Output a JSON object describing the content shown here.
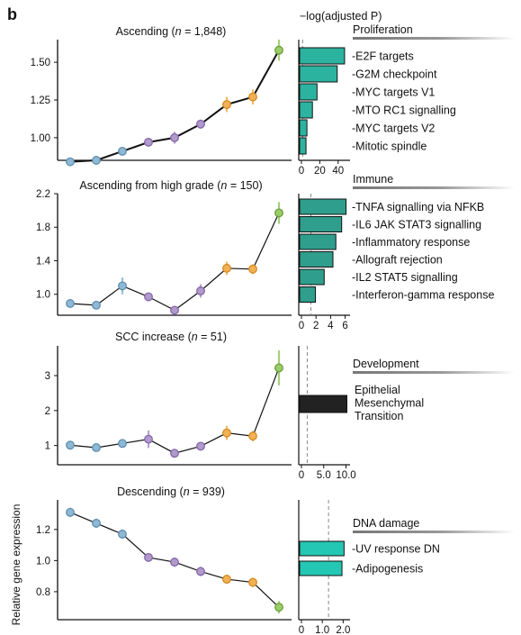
{
  "panel_letter": "b",
  "top_axis_label": "−log(adjusted P)",
  "y_axis_label": "Relative gene expression",
  "colors": {
    "blue": "#8fb8d4",
    "purple": "#b19acb",
    "orange": "#f0b255",
    "green": "#9bcc6a",
    "bar_proliferation": "#2bb3a0",
    "bar_immune": "#2f9e8c",
    "bar_development": "#222222",
    "bar_dna": "#24c7b3"
  },
  "chart_data": [
    {
      "type": "line",
      "title": "Ascending (n = 1,848)",
      "title_parts": [
        "Ascending (",
        "n",
        " = 1,848)"
      ],
      "yticks": [
        "1.00",
        "1.25",
        "1.50"
      ],
      "ylim": [
        0.85,
        1.65
      ],
      "x": [
        1,
        2,
        3,
        4,
        5,
        6,
        7,
        8,
        9
      ],
      "y": [
        0.84,
        0.85,
        0.91,
        0.97,
        1.0,
        1.09,
        1.22,
        1.27,
        1.58
      ],
      "err": [
        0.02,
        0.02,
        0.02,
        0.02,
        0.04,
        0.03,
        0.05,
        0.05,
        0.07
      ],
      "colors": [
        "blue",
        "blue",
        "blue",
        "purple",
        "purple",
        "purple",
        "orange",
        "orange",
        "green"
      ]
    },
    {
      "type": "line",
      "title": "Ascending from high grade (n = 150)",
      "title_parts": [
        "Ascending from high grade (",
        "n",
        " = 150)"
      ],
      "yticks": [
        "1.0",
        "1.4",
        "1.8",
        "2.2"
      ],
      "ylim": [
        0.75,
        2.2
      ],
      "x": [
        1,
        2,
        3,
        4,
        5,
        6,
        7,
        8,
        9
      ],
      "y": [
        0.89,
        0.87,
        1.1,
        0.97,
        0.81,
        1.04,
        1.31,
        1.3,
        1.97
      ],
      "err": [
        0.03,
        0.03,
        0.1,
        0.05,
        0.04,
        0.08,
        0.08,
        0.06,
        0.13
      ],
      "colors": [
        "blue",
        "blue",
        "blue",
        "purple",
        "purple",
        "purple",
        "orange",
        "orange",
        "green"
      ]
    },
    {
      "type": "line",
      "title": "SCC increase (n = 51)",
      "title_parts": [
        "SCC increase (",
        "n",
        " = 51)"
      ],
      "yticks": [
        "1",
        "2",
        "3"
      ],
      "ylim": [
        0.45,
        3.85
      ],
      "x": [
        1,
        2,
        3,
        4,
        5,
        6,
        7,
        8,
        9
      ],
      "y": [
        1.01,
        0.94,
        1.06,
        1.18,
        0.78,
        0.98,
        1.36,
        1.27,
        3.22
      ],
      "err": [
        0.07,
        0.07,
        0.12,
        0.25,
        0.1,
        0.12,
        0.2,
        0.15,
        0.5
      ],
      "colors": [
        "blue",
        "blue",
        "blue",
        "purple",
        "purple",
        "purple",
        "orange",
        "orange",
        "green"
      ]
    },
    {
      "type": "line",
      "title": "Descending (n = 939)",
      "title_parts": [
        "Descending (",
        "n",
        " = 939)"
      ],
      "yticks": [
        "0.8",
        "1.0",
        "1.2"
      ],
      "ylim": [
        0.62,
        1.39
      ],
      "x": [
        1,
        2,
        3,
        4,
        5,
        6,
        7,
        8,
        9
      ],
      "y": [
        1.31,
        1.24,
        1.17,
        1.02,
        0.99,
        0.93,
        0.88,
        0.86,
        0.7
      ],
      "err": [
        0.03,
        0.03,
        0.03,
        0.02,
        0.03,
        0.03,
        0.03,
        0.03,
        0.04
      ],
      "colors": [
        "blue",
        "blue",
        "blue",
        "purple",
        "purple",
        "purple",
        "orange",
        "orange",
        "green"
      ]
    }
  ],
  "enrichment": [
    {
      "type": "bar",
      "category": "Proliferation",
      "bar_color": "bar_proliferation",
      "xlim": [
        0,
        50
      ],
      "xticks": [
        "0",
        "20",
        "40"
      ],
      "xtick_values": [
        0,
        20,
        40
      ],
      "threshold": 1.3,
      "labels": [
        "E2F targets",
        "G2M checkpoint",
        "MYC targets V1",
        "MTO RC1 signalling",
        "MYC targets V2",
        "Mitotic spindle"
      ],
      "values": [
        46,
        38,
        16,
        11,
        5,
        4
      ]
    },
    {
      "type": "bar",
      "category": "Immune",
      "bar_color": "bar_immune",
      "xlim": [
        0,
        6.3
      ],
      "xticks": [
        "0",
        "2",
        "4",
        "6"
      ],
      "xtick_values": [
        0,
        2,
        4,
        6
      ],
      "threshold": 1.3,
      "labels": [
        "TNFA signalling via NFKB",
        "IL6 JAK STAT3 signalling",
        "Inflammatory response",
        "Allograft rejection",
        "IL2 STAT5 signalling",
        "Interferon-gamma response"
      ],
      "values": [
        6.0,
        5.4,
        4.6,
        4.2,
        3.0,
        1.8
      ]
    },
    {
      "type": "bar",
      "category": "Development",
      "bar_color": "bar_development",
      "xlim": [
        0,
        10.3
      ],
      "xticks": [
        "0",
        "5.0",
        "10.0"
      ],
      "xtick_values": [
        0,
        5,
        10
      ],
      "threshold": 1.3,
      "labels": [
        "Epithelial Mesenchymal Transition"
      ],
      "label_lines": [
        "Epithelial",
        "Mesenchymal",
        "Transition"
      ],
      "values": [
        10.0
      ]
    },
    {
      "type": "bar",
      "category": "DNA damage",
      "bar_color": "bar_dna",
      "xlim": [
        0,
        2.2
      ],
      "xticks": [
        "0",
        "1.0",
        "2.0"
      ],
      "xtick_values": [
        0,
        1,
        2
      ],
      "threshold": 1.3,
      "labels": [
        "UV response DN",
        "Adipogenesis"
      ],
      "values": [
        2.0,
        1.9
      ]
    }
  ]
}
